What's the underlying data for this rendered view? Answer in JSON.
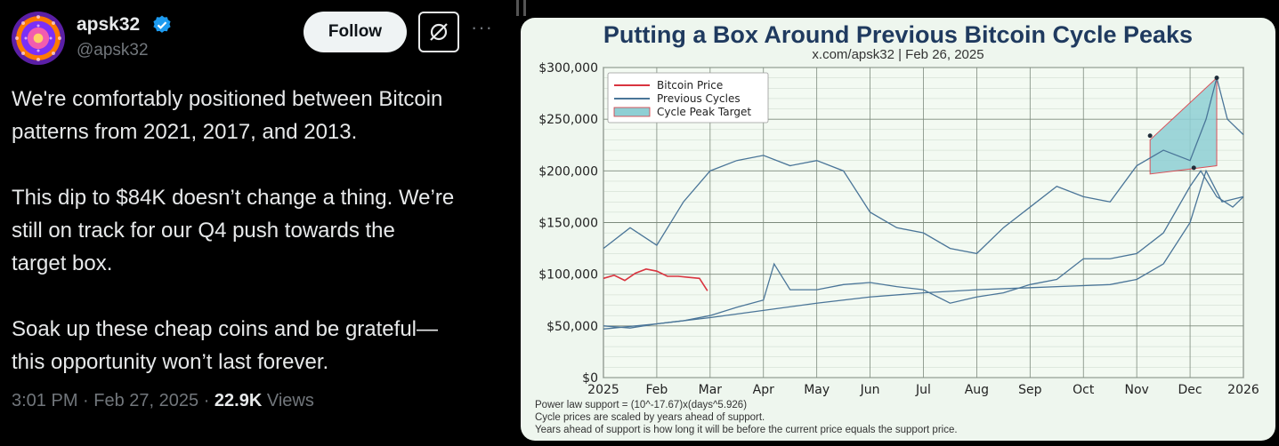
{
  "tweet": {
    "display_name": "apsk32",
    "handle": "@apsk32",
    "follow_label": "Follow",
    "more_label": "···",
    "paragraphs": [
      "We're comfortably positioned between Bitcoin\npatterns from 2021, 2017, and 2013.",
      "This dip to $84K doesn’t change a thing. We’re\nstill on track for our Q4 push towards the\ntarget box.",
      "Soak up these cheap coins and be grateful—\nthis opportunity won’t last forever."
    ],
    "time": "3:01 PM",
    "date": "Feb 27, 2025",
    "views_count": "22.9K",
    "views_label": "Views",
    "colors": {
      "verified": "#1d9bf0",
      "text": "#e7e9ea",
      "muted": "#71767b"
    },
    "icons": [
      "verified-badge-icon",
      "grok-icon",
      "more-icon"
    ]
  },
  "chart_data": {
    "type": "line",
    "title": "Putting a Box Around Previous Bitcoin Cycle Peaks",
    "subtitle": "x.com/apsk32 | Feb 26, 2025",
    "x_ticks": [
      "2025",
      "Feb",
      "Mar",
      "Apr",
      "May",
      "Jun",
      "Jul",
      "Aug",
      "Sep",
      "Oct",
      "Nov",
      "Dec",
      "2026"
    ],
    "y_ticks": [
      "$0",
      "$50,000",
      "$100,000",
      "$150,000",
      "$200,000",
      "$250,000",
      "$300,000"
    ],
    "ylim": [
      0,
      300000
    ],
    "x_unit": "month-of-2025 (0 = Jan 1, 12 = Jan 1 2026)",
    "grid": true,
    "legend": {
      "placement": "top-left",
      "entries": [
        "Bitcoin Price",
        "Previous Cycles",
        "Cycle Peak Target"
      ],
      "colors": [
        "#d9343f",
        "#4a7598",
        "#8fcfd4"
      ]
    },
    "series": [
      {
        "name": "Bitcoin Price",
        "color": "#d9343f",
        "x": [
          0,
          0.2,
          0.4,
          0.6,
          0.8,
          1.0,
          1.2,
          1.4,
          1.6,
          1.8,
          1.95
        ],
        "values": [
          96000,
          99000,
          94000,
          101000,
          105000,
          103000,
          98000,
          98000,
          97000,
          96000,
          84000
        ]
      },
      {
        "name": "Previous Cycles",
        "color": "#4a7598",
        "x": [
          0,
          0.5,
          1.0,
          1.5,
          2.0,
          2.5,
          3.0,
          3.5,
          4.0,
          4.5,
          5.0,
          5.5,
          6.0,
          6.5,
          7.0,
          7.5,
          8.0,
          8.5,
          9.0,
          9.5,
          10.0,
          10.5,
          11.0,
          11.3,
          11.5,
          11.7,
          12.0
        ],
        "values": [
          125000,
          145000,
          128000,
          170000,
          200000,
          210000,
          215000,
          205000,
          210000,
          200000,
          160000,
          145000,
          140000,
          125000,
          120000,
          145000,
          165000,
          185000,
          175000,
          170000,
          205000,
          220000,
          210000,
          250000,
          290000,
          250000,
          235000
        ]
      },
      {
        "name": "Previous Cycles",
        "color": "#4a7598",
        "x": [
          0,
          0.5,
          1.0,
          1.5,
          2.0,
          2.5,
          3.0,
          3.2,
          3.5,
          4.0,
          4.5,
          5.0,
          5.5,
          6.0,
          6.5,
          7.0,
          7.5,
          8.0,
          8.5,
          9.0,
          9.5,
          10.0,
          10.5,
          11.0,
          11.2,
          11.5,
          11.8,
          12.0
        ],
        "values": [
          50000,
          48000,
          52000,
          55000,
          60000,
          68000,
          75000,
          110000,
          85000,
          85000,
          90000,
          92000,
          88000,
          85000,
          72000,
          78000,
          82000,
          90000,
          95000,
          115000,
          115000,
          120000,
          140000,
          185000,
          200000,
          175000,
          165000,
          175000
        ]
      },
      {
        "name": "Previous Cycles",
        "color": "#4a7598",
        "x": [
          0,
          1,
          2,
          3,
          4,
          5,
          6,
          7,
          8,
          9,
          9.5,
          10,
          10.5,
          11,
          11.3,
          11.6,
          12
        ],
        "values": [
          47000,
          52000,
          58000,
          65000,
          72000,
          78000,
          82000,
          85000,
          87000,
          89000,
          90000,
          95000,
          110000,
          150000,
          200000,
          170000,
          175000
        ]
      }
    ],
    "target_box": {
      "corners": [
        [
          10.25,
          230000
        ],
        [
          11.5,
          290000
        ],
        [
          11.5,
          205000
        ],
        [
          10.25,
          197000
        ]
      ],
      "peak_points": [
        [
          10.25,
          234000
        ],
        [
          11.07,
          203000
        ],
        [
          11.5,
          290000
        ]
      ]
    },
    "footnotes": [
      "Power law support = (10^-17.67)x(days^5.926)",
      "Cycle prices are scaled by years ahead of support.",
      "Years ahead of support is how long it will be before the current price equals the support price."
    ]
  }
}
